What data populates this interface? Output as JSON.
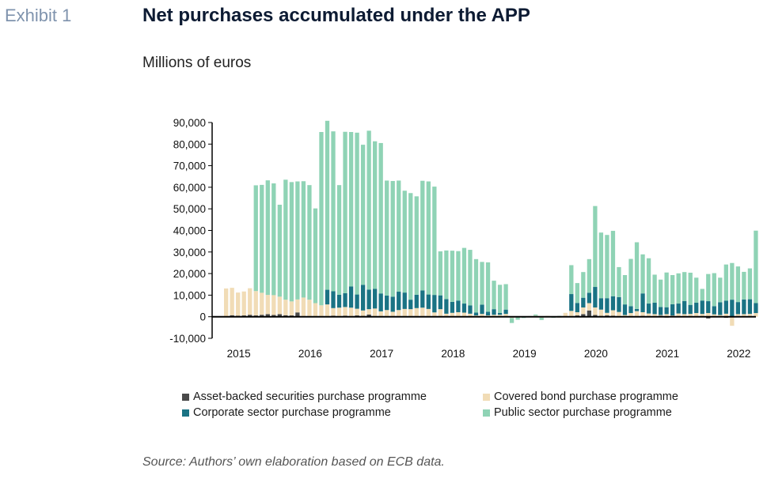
{
  "header": {
    "exhibit": "Exhibit 1",
    "title": "Net purchases accumulated under the APP",
    "subtitle": "Millions of euros"
  },
  "source": "Source: Authors’ own elaboration based on ECB data.",
  "colors": {
    "abspp": "#4a4a4a",
    "cbpp": "#f1dcb6",
    "cspp": "#1a7384",
    "pspp": "#8fd3b5",
    "axis": "#000000"
  },
  "legend": [
    {
      "key": "abspp",
      "label": "Asset-backed securities purchase programme"
    },
    {
      "key": "cbpp",
      "label": "Covered bond purchase programme"
    },
    {
      "key": "cspp",
      "label": "Corporate sector purchase programme"
    },
    {
      "key": "pspp",
      "label": "Public sector purchase programme"
    }
  ],
  "chart_data": {
    "type": "bar",
    "stacked": true,
    "ylim": [
      -10000,
      90000
    ],
    "yticks": [
      "90,000",
      "80,000",
      "70,000",
      "60,000",
      "50,000",
      "40,000",
      "30,000",
      "20,000",
      "10,000",
      "0",
      "-10,000"
    ],
    "ytick_values": [
      90000,
      80000,
      70000,
      60000,
      50000,
      40000,
      30000,
      20000,
      10000,
      0,
      -10000
    ],
    "year_labels": [
      "2015",
      "2016",
      "2017",
      "2018",
      "2019",
      "2020",
      "2021",
      "2022"
    ],
    "year_start_index": [
      0,
      12,
      24,
      36,
      48,
      60,
      72,
      84
    ],
    "categories": [
      "2015-01",
      "2015-02",
      "2015-03",
      "2015-04",
      "2015-05",
      "2015-06",
      "2015-07",
      "2015-08",
      "2015-09",
      "2015-10",
      "2015-11",
      "2015-12",
      "2016-01",
      "2016-02",
      "2016-03",
      "2016-04",
      "2016-05",
      "2016-06",
      "2016-07",
      "2016-08",
      "2016-09",
      "2016-10",
      "2016-11",
      "2016-12",
      "2017-01",
      "2017-02",
      "2017-03",
      "2017-04",
      "2017-05",
      "2017-06",
      "2017-07",
      "2017-08",
      "2017-09",
      "2017-10",
      "2017-11",
      "2017-12",
      "2018-01",
      "2018-02",
      "2018-03",
      "2018-04",
      "2018-05",
      "2018-06",
      "2018-07",
      "2018-08",
      "2018-09",
      "2018-10",
      "2018-11",
      "2018-12",
      "2019-01",
      "2019-02",
      "2019-03",
      "2019-04",
      "2019-05",
      "2019-06",
      "2019-07",
      "2019-08",
      "2019-09",
      "2019-10",
      "2019-11",
      "2019-12",
      "2020-01",
      "2020-02",
      "2020-03",
      "2020-04",
      "2020-05",
      "2020-06",
      "2020-07",
      "2020-08",
      "2020-09",
      "2020-10",
      "2020-11",
      "2020-12",
      "2021-01",
      "2021-02",
      "2021-03",
      "2021-04",
      "2021-05",
      "2021-06",
      "2021-07",
      "2021-08",
      "2021-09",
      "2021-10",
      "2021-11",
      "2021-12",
      "2022-01",
      "2022-02",
      "2022-03",
      "2022-04",
      "2022-05",
      "2022-06"
    ],
    "series": [
      {
        "name": "Asset-backed securities purchase programme",
        "key": "abspp",
        "values": [
          300,
          700,
          500,
          600,
          900,
          600,
          900,
          1200,
          800,
          1200,
          700,
          600,
          2000,
          300,
          300,
          100,
          -100,
          200,
          500,
          300,
          500,
          300,
          600,
          400,
          1000,
          200,
          300,
          200,
          300,
          300,
          200,
          200,
          300,
          300,
          200,
          300,
          200,
          200,
          200,
          200,
          200,
          100,
          200,
          200,
          100,
          100,
          200,
          100,
          -200,
          -300,
          -100,
          100,
          -100,
          0,
          200,
          100,
          -200,
          300,
          300,
          600,
          1200,
          2900,
          800,
          400,
          600,
          500,
          300,
          200,
          100,
          200,
          400,
          200,
          -200,
          500,
          -400,
          500,
          300,
          200,
          100,
          -100,
          -100,
          -800,
          200,
          100,
          -500,
          200,
          0,
          100,
          100,
          0
        ]
      },
      {
        "name": "Covered bond purchase programme",
        "key": "cbpp",
        "values": [
          12800,
          12700,
          10700,
          11100,
          12300,
          11300,
          10200,
          8900,
          9200,
          8100,
          7200,
          6500,
          6000,
          8600,
          7600,
          6200,
          5300,
          5500,
          3500,
          3900,
          4000,
          3900,
          3100,
          2500,
          2500,
          3600,
          2200,
          2900,
          2000,
          2800,
          3400,
          3300,
          3700,
          3900,
          3400,
          1700,
          3300,
          1200,
          1600,
          1900,
          1700,
          1300,
          400,
          1100,
          500,
          800,
          700,
          1200,
          -400,
          200,
          -200,
          -300,
          500,
          -500,
          200,
          -200,
          -200,
          1500,
          2400,
          1500,
          3100,
          3400,
          3500,
          2900,
          1200,
          2500,
          1900,
          600,
          1600,
          2400,
          1700,
          1300,
          1200,
          300,
          1200,
          100,
          1200,
          1000,
          1200,
          1700,
          1300,
          1700,
          900,
          700,
          1400,
          -4200,
          1200,
          1100,
          1200,
          1700
        ]
      },
      {
        "name": "Corporate sector purchase programme",
        "key": "cspp",
        "values": [
          0,
          0,
          0,
          0,
          0,
          0,
          0,
          0,
          0,
          0,
          0,
          0,
          0,
          0,
          0,
          0,
          0,
          6800,
          7800,
          6000,
          6400,
          9800,
          6600,
          11900,
          9100,
          9100,
          8300,
          6700,
          7000,
          8500,
          7600,
          4400,
          6200,
          8000,
          6700,
          8100,
          6400,
          6800,
          5100,
          5400,
          4200,
          3800,
          1300,
          4300,
          1700,
          2600,
          900,
          2000,
          0,
          0,
          0,
          0,
          0,
          0,
          0,
          0,
          0,
          0,
          7800,
          4300,
          4500,
          4800,
          9500,
          5300,
          6800,
          6500,
          6900,
          4900,
          3200,
          1000,
          8700,
          4600,
          5300,
          3700,
          3200,
          5200,
          4600,
          6100,
          4200,
          4800,
          6200,
          5500,
          3800,
          5900,
          6000,
          7700,
          5600,
          6800,
          6800,
          4600
        ]
      },
      {
        "name": "Public sector purchase programme",
        "key": "pspp",
        "values": [
          0,
          0,
          0,
          0,
          0,
          49000,
          50000,
          53100,
          51800,
          42600,
          55600,
          55300,
          54700,
          53900,
          53100,
          43900,
          80300,
          78300,
          74100,
          50800,
          74800,
          71600,
          75000,
          64900,
          73600,
          68400,
          69700,
          53300,
          53600,
          51500,
          47200,
          49400,
          45600,
          50800,
          52400,
          50200,
          20400,
          22500,
          23700,
          22900,
          25800,
          25800,
          24800,
          19800,
          22900,
          13200,
          13000,
          11800,
          -2300,
          -1100,
          -300,
          200,
          500,
          -1000,
          -200,
          -300,
          400,
          -100,
          13400,
          9200,
          11900,
          15600,
          37500,
          30400,
          29300,
          30300,
          13900,
          13600,
          21900,
          30900,
          18100,
          21000,
          13000,
          12700,
          16100,
          13500,
          14000,
          13400,
          14900,
          11600,
          5400,
          12600,
          15300,
          11400,
          16800,
          17000,
          16500,
          12800,
          14300,
          33600
        ]
      }
    ]
  }
}
